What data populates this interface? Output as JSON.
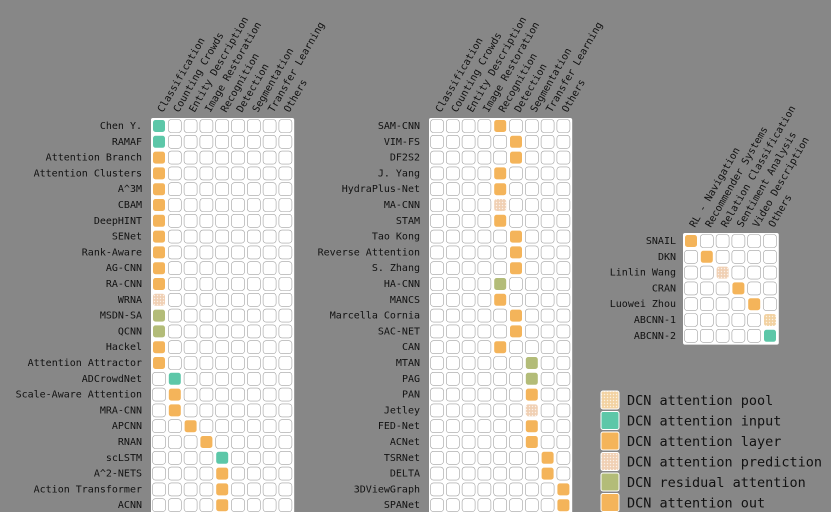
{
  "colors": {
    "background": "#878787",
    "cell_empty": "#ffffff",
    "cell_border": "#a0a0a0",
    "pool": "#f2d2a2",
    "input": "#5cc7a8",
    "layer": "#f4b45a",
    "prediction": "#f0d0b4",
    "residual": "#b3bc78",
    "out": "#f4b45a"
  },
  "legend": [
    {
      "key": "pool",
      "label": "DCN attention pool",
      "pattern": true
    },
    {
      "key": "input",
      "label": "DCN attention input",
      "pattern": false
    },
    {
      "key": "layer",
      "label": "DCN attention layer",
      "pattern": false
    },
    {
      "key": "prediction",
      "label": "DCN attention prediction",
      "pattern": true
    },
    {
      "key": "residual",
      "label": "DCN residual attention",
      "pattern": false
    },
    {
      "key": "out",
      "label": "DCN attention out",
      "pattern": false
    }
  ],
  "panels": [
    {
      "name": "panel-vision-left",
      "columns": [
        "Classification",
        "Counting Crowds",
        "Entity Description",
        "Image Restoration",
        "Recognition",
        "Detection",
        "Segmentation",
        "Transfer Learning",
        "Others"
      ],
      "rows": [
        {
          "label": "Chen Y.",
          "col": 0,
          "type": "input"
        },
        {
          "label": "RAMAF",
          "col": 0,
          "type": "input"
        },
        {
          "label": "Attention Branch",
          "col": 0,
          "type": "layer"
        },
        {
          "label": "Attention Clusters",
          "col": 0,
          "type": "layer"
        },
        {
          "label": "A^3M",
          "col": 0,
          "type": "layer"
        },
        {
          "label": "CBAM",
          "col": 0,
          "type": "layer"
        },
        {
          "label": "DeepHINT",
          "col": 0,
          "type": "layer"
        },
        {
          "label": "SENet",
          "col": 0,
          "type": "layer"
        },
        {
          "label": "Rank-Aware",
          "col": 0,
          "type": "layer"
        },
        {
          "label": "AG-CNN",
          "col": 0,
          "type": "layer"
        },
        {
          "label": "RA-CNN",
          "col": 0,
          "type": "layer"
        },
        {
          "label": "WRNA",
          "col": 0,
          "type": "prediction"
        },
        {
          "label": "MSDN-SA",
          "col": 0,
          "type": "residual"
        },
        {
          "label": "QCNN",
          "col": 0,
          "type": "residual"
        },
        {
          "label": "Hackel",
          "col": 0,
          "type": "layer"
        },
        {
          "label": "Attention Attractor",
          "col": 0,
          "type": "layer"
        },
        {
          "label": "ADCrowdNet",
          "col": 1,
          "type": "input"
        },
        {
          "label": "Scale-Aware Attention",
          "col": 1,
          "type": "layer"
        },
        {
          "label": "MRA-CNN",
          "col": 1,
          "type": "layer"
        },
        {
          "label": "APCNN",
          "col": 2,
          "type": "layer"
        },
        {
          "label": "RNAN",
          "col": 3,
          "type": "layer"
        },
        {
          "label": "scLSTM",
          "col": 4,
          "type": "input"
        },
        {
          "label": "A^2-NETS",
          "col": 4,
          "type": "layer"
        },
        {
          "label": "Action Transformer",
          "col": 4,
          "type": "layer"
        },
        {
          "label": "ACNN",
          "col": 4,
          "type": "layer"
        }
      ]
    },
    {
      "name": "panel-vision-right",
      "columns": [
        "Classification",
        "Counting Crowds",
        "Entity Description",
        "Image Restoration",
        "Recognition",
        "Detection",
        "Segmentation",
        "Transfer Learning",
        "Others"
      ],
      "rows": [
        {
          "label": "SAM-CNN",
          "col": 4,
          "type": "layer"
        },
        {
          "label": "VIM-FS",
          "col": 5,
          "type": "layer"
        },
        {
          "label": "DF2S2",
          "col": 5,
          "type": "layer"
        },
        {
          "label": "J. Yang",
          "col": 4,
          "type": "layer"
        },
        {
          "label": "HydraPlus-Net",
          "col": 4,
          "type": "layer"
        },
        {
          "label": "MA-CNN",
          "col": 4,
          "type": "prediction"
        },
        {
          "label": "STAM",
          "col": 4,
          "type": "layer"
        },
        {
          "label": "Tao Kong",
          "col": 5,
          "type": "layer"
        },
        {
          "label": "Reverse Attention",
          "col": 5,
          "type": "layer"
        },
        {
          "label": "S. Zhang",
          "col": 5,
          "type": "layer"
        },
        {
          "label": "HA-CNN",
          "col": 4,
          "type": "residual"
        },
        {
          "label": "MANCS",
          "col": 4,
          "type": "layer"
        },
        {
          "label": "Marcella Cornia",
          "col": 5,
          "type": "layer"
        },
        {
          "label": "SAC-NET",
          "col": 5,
          "type": "layer"
        },
        {
          "label": "CAN",
          "col": 4,
          "type": "layer"
        },
        {
          "label": "MTAN",
          "col": 6,
          "type": "residual"
        },
        {
          "label": "PAG",
          "col": 6,
          "type": "residual"
        },
        {
          "label": "PAN",
          "col": 6,
          "type": "layer"
        },
        {
          "label": "Jetley",
          "col": 6,
          "type": "prediction"
        },
        {
          "label": "FED-Net",
          "col": 6,
          "type": "layer"
        },
        {
          "label": "ACNet",
          "col": 6,
          "type": "layer"
        },
        {
          "label": "TSRNet",
          "col": 7,
          "type": "layer"
        },
        {
          "label": "DELTA",
          "col": 7,
          "type": "layer"
        },
        {
          "label": "3DViewGraph",
          "col": 8,
          "type": "layer"
        },
        {
          "label": "SPANet",
          "col": 8,
          "type": "layer"
        }
      ]
    },
    {
      "name": "panel-other",
      "columns": [
        "RL - Navigation",
        "Recommender Systems",
        "Relation Classification",
        "Sentiment Analysis",
        "Video Description",
        "Others"
      ],
      "rows": [
        {
          "label": "SNAIL",
          "col": 0,
          "type": "layer"
        },
        {
          "label": "DKN",
          "col": 1,
          "type": "layer"
        },
        {
          "label": "Linlin Wang",
          "col": 2,
          "type": "prediction"
        },
        {
          "label": "CRAN",
          "col": 3,
          "type": "layer"
        },
        {
          "label": "Luowei Zhou",
          "col": 4,
          "type": "layer"
        },
        {
          "label": "ABCNN-1",
          "col": 5,
          "type": "pool"
        },
        {
          "label": "ABCNN-2",
          "col": 5,
          "type": "input"
        }
      ]
    }
  ]
}
